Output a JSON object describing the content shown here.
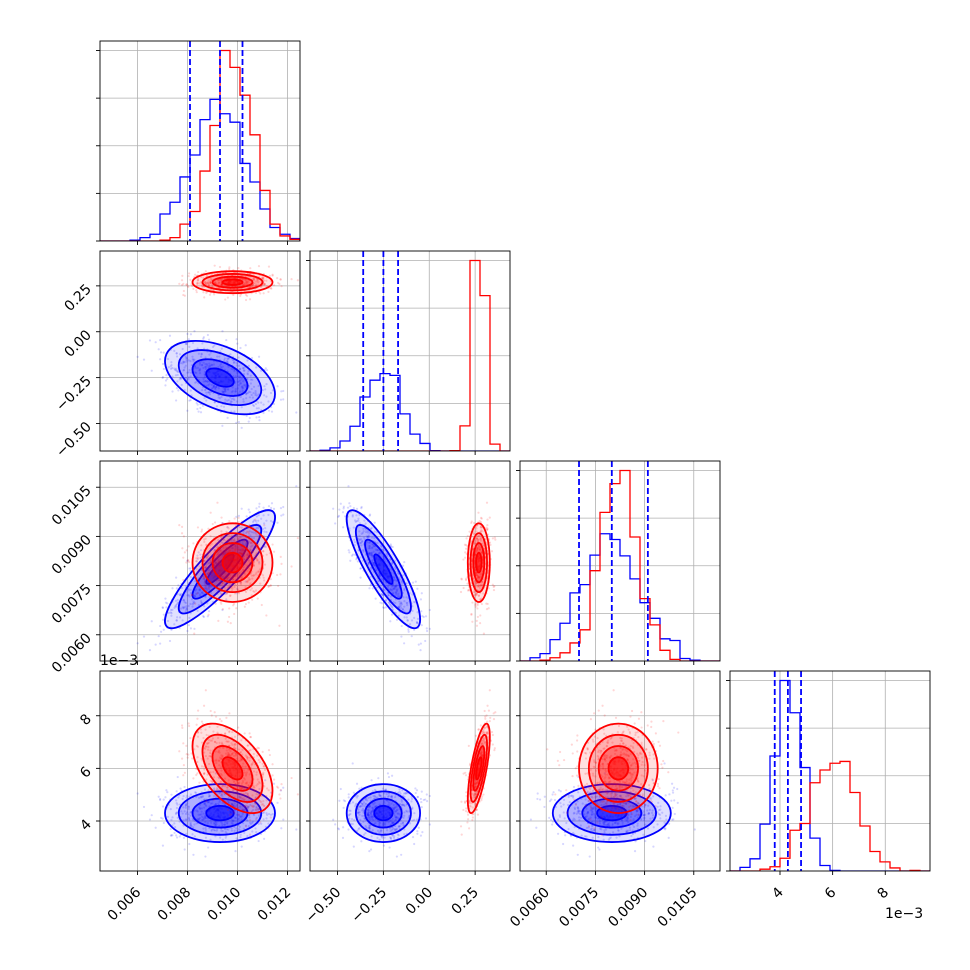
{
  "chart_data": {
    "type": "corner",
    "grid": true,
    "colors": {
      "series_a": "#0000ff",
      "series_b": "#ff0000",
      "quantile_lines": "#0000ff"
    },
    "series": [
      {
        "color": "#0000ff",
        "means": [
          0.0093,
          -0.25,
          0.008,
          0.0043
        ],
        "sds": [
          0.0011,
          0.1,
          0.0009,
          0.00055
        ],
        "corr": [
          [
            1,
            -0.45,
            0.88,
            0.0
          ],
          [
            -0.45,
            1,
            -0.85,
            0.0
          ],
          [
            0.88,
            -0.85,
            1,
            0.0
          ],
          [
            0.0,
            0.0,
            0.0,
            1
          ]
        ]
      },
      {
        "color": "#ff0000",
        "means": [
          0.0098,
          0.27,
          0.0082,
          0.006
        ],
        "sds": [
          0.0008,
          0.03,
          0.0006,
          0.00085
        ],
        "corr": [
          [
            1,
            0.0,
            0.0,
            -0.5
          ],
          [
            0.0,
            1,
            0.0,
            0.7
          ],
          [
            0.0,
            0.0,
            1,
            0.0
          ],
          [
            -0.5,
            0.7,
            0.0,
            1
          ]
        ]
      }
    ],
    "params": [
      {
        "range": [
          0.0045,
          0.0125
        ],
        "ticks": [
          0.006,
          0.008,
          0.01,
          0.012
        ],
        "tick_labels": [
          "0.006",
          "0.008",
          "0.010",
          "0.012"
        ],
        "offset": "",
        "quantiles": [
          0.0081,
          0.0093,
          0.0102
        ]
      },
      {
        "range": [
          -0.65,
          0.44
        ],
        "ticks": [
          -0.5,
          -0.25,
          0.0,
          0.25
        ],
        "tick_labels": [
          "−0.50",
          "−0.25",
          "0.00",
          "0.25"
        ],
        "offset": "",
        "quantiles": [
          -0.36,
          -0.25,
          -0.17
        ]
      },
      {
        "range": [
          0.0052,
          0.0113
        ],
        "ticks": [
          0.006,
          0.0075,
          0.009,
          0.0105
        ],
        "tick_labels": [
          "0.0060",
          "0.0075",
          "0.0090",
          "0.0105"
        ],
        "offset": "",
        "quantiles": [
          0.007,
          0.008,
          0.0091
        ]
      },
      {
        "range": [
          0.0021,
          0.0097
        ],
        "ticks": [
          0.004,
          0.006,
          0.008
        ],
        "tick_labels": [
          "4",
          "6",
          "8"
        ],
        "offset": "1e−3",
        "quantiles": [
          0.0038,
          0.0043,
          0.0048
        ]
      }
    ]
  }
}
